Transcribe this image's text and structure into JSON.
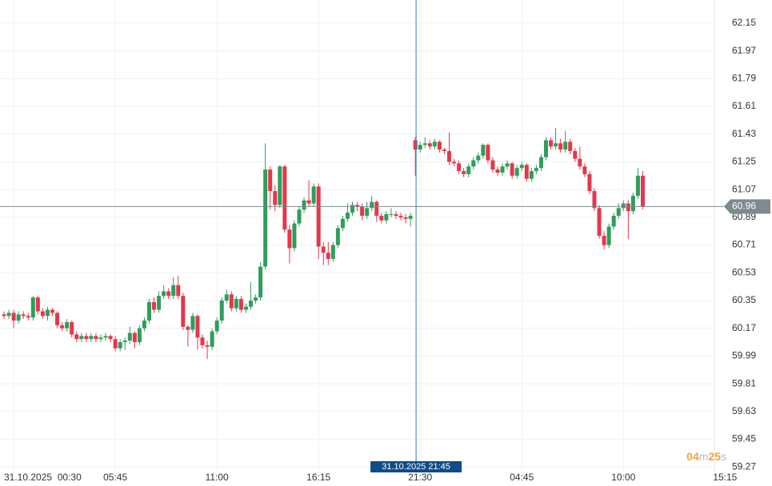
{
  "chart_data": {
    "type": "candlestick",
    "up_color": "#2e9e5b",
    "down_color": "#e5374c",
    "grid": true,
    "open": [
      60.26,
      60.25,
      60.27,
      60.22,
      60.26,
      60.25,
      60.24,
      60.37,
      60.28,
      60.25,
      60.29,
      60.27,
      60.19,
      60.17,
      60.21,
      60.13,
      60.1,
      60.12,
      60.1,
      60.12,
      60.1,
      60.11,
      60.12,
      60.1,
      60.04,
      60.08,
      60.09,
      60.14,
      60.08,
      60.17,
      60.22,
      60.34,
      60.29,
      60.38,
      60.41,
      60.38,
      60.45,
      60.38,
      60.18,
      60.16,
      60.25,
      60.11,
      60.06,
      60.05,
      60.15,
      60.22,
      60.35,
      60.39,
      60.3,
      60.36,
      60.29,
      60.31,
      60.35,
      60.37,
      60.57,
      61.2,
      61.06,
      60.97,
      61.22,
      60.81,
      60.69,
      60.85,
      60.94,
      61.0,
      60.98,
      61.09,
      60.7,
      60.66,
      60.62,
      60.71,
      60.82,
      60.88,
      60.92,
      60.97,
      60.96,
      60.9,
      60.95,
      60.99,
      60.9,
      60.87,
      60.91,
      60.91,
      60.9,
      60.89,
      60.88,
      61.39,
      61.33,
      61.36,
      61.37,
      61.35,
      61.38,
      61.33,
      61.32,
      61.25,
      61.24,
      61.19,
      61.17,
      61.22,
      61.26,
      61.29,
      61.36,
      61.26,
      61.2,
      61.18,
      61.22,
      61.24,
      61.16,
      61.21,
      61.23,
      61.14,
      61.19,
      61.21,
      61.28,
      61.39,
      61.35,
      61.37,
      61.33,
      61.38,
      61.32,
      61.27,
      61.22,
      61.17,
      61.06,
      60.95,
      60.77,
      60.71,
      60.83,
      60.9,
      60.95,
      60.98,
      60.93,
      61.03,
      61.16
    ],
    "high": [
      60.28,
      60.29,
      60.29,
      60.28,
      60.28,
      60.27,
      60.38,
      60.38,
      60.3,
      60.31,
      60.3,
      60.28,
      60.21,
      60.23,
      60.22,
      60.15,
      60.14,
      60.14,
      60.14,
      60.14,
      60.13,
      60.14,
      60.13,
      60.12,
      60.1,
      60.11,
      60.18,
      60.15,
      60.19,
      60.24,
      60.36,
      60.37,
      60.41,
      60.45,
      60.43,
      60.5,
      60.51,
      60.4,
      60.19,
      60.27,
      60.26,
      60.13,
      60.09,
      60.17,
      60.24,
      60.37,
      60.42,
      60.41,
      60.38,
      60.38,
      60.33,
      60.47,
      60.39,
      60.6,
      61.37,
      61.22,
      61.1,
      61.23,
      61.23,
      60.84,
      60.87,
      60.96,
      61.02,
      61.13,
      61.11,
      61.11,
      60.73,
      60.73,
      60.73,
      60.84,
      60.9,
      60.98,
      60.99,
      60.99,
      60.98,
      60.99,
      61.03,
      61.0,
      60.92,
      60.93,
      60.95,
      60.93,
      60.92,
      60.91,
      60.92,
      61.41,
      61.38,
      61.41,
      61.39,
      61.4,
      61.39,
      61.34,
      61.44,
      61.27,
      61.26,
      61.21,
      61.24,
      61.28,
      61.31,
      61.37,
      61.37,
      61.28,
      61.22,
      61.24,
      61.26,
      61.25,
      61.23,
      61.25,
      61.24,
      61.21,
      61.23,
      61.3,
      61.41,
      61.41,
      61.47,
      61.4,
      61.45,
      61.4,
      61.34,
      61.35,
      61.24,
      61.19,
      61.08,
      60.97,
      60.8,
      60.85,
      60.92,
      60.98,
      61.0,
      61.0,
      61.05,
      61.21,
      61.19
    ],
    "low": [
      60.23,
      60.23,
      60.17,
      60.2,
      60.23,
      60.22,
      60.22,
      60.26,
      60.23,
      60.22,
      60.25,
      60.17,
      60.15,
      60.15,
      60.11,
      60.08,
      60.08,
      60.08,
      60.08,
      60.08,
      60.08,
      60.09,
      60.08,
      60.02,
      60.02,
      60.03,
      60.07,
      60.04,
      60.06,
      60.15,
      60.2,
      60.27,
      60.27,
      60.36,
      60.36,
      60.36,
      60.36,
      60.16,
      60.05,
      60.14,
      60.03,
      60.04,
      59.97,
      60.03,
      60.13,
      60.2,
      60.33,
      60.28,
      60.28,
      60.27,
      60.27,
      60.29,
      60.33,
      60.35,
      60.55,
      60.94,
      60.93,
      60.95,
      60.79,
      60.59,
      60.67,
      60.83,
      60.92,
      60.96,
      60.96,
      60.62,
      60.58,
      60.58,
      60.6,
      60.69,
      60.8,
      60.86,
      60.9,
      60.93,
      60.87,
      60.88,
      60.93,
      60.86,
      60.85,
      60.85,
      60.89,
      60.88,
      60.87,
      60.85,
      60.83,
      61.16,
      61.31,
      61.34,
      61.33,
      61.33,
      61.31,
      61.3,
      61.23,
      61.22,
      61.17,
      61.15,
      61.15,
      61.2,
      61.24,
      61.27,
      61.24,
      61.18,
      61.16,
      61.16,
      61.2,
      61.14,
      61.14,
      61.19,
      61.12,
      61.12,
      61.17,
      61.19,
      61.26,
      61.33,
      61.33,
      61.31,
      61.31,
      61.3,
      61.25,
      61.2,
      61.15,
      61.04,
      60.93,
      60.75,
      60.68,
      60.69,
      60.81,
      60.88,
      60.93,
      60.75,
      60.91,
      61.01,
      60.94
    ],
    "close": [
      60.25,
      60.27,
      60.22,
      60.26,
      60.25,
      60.24,
      60.37,
      60.28,
      60.25,
      60.29,
      60.27,
      60.19,
      60.17,
      60.21,
      60.13,
      60.1,
      60.12,
      60.1,
      60.12,
      60.1,
      60.11,
      60.12,
      60.1,
      60.04,
      60.08,
      60.09,
      60.14,
      60.08,
      60.17,
      60.22,
      60.34,
      60.29,
      60.38,
      60.41,
      60.38,
      60.45,
      60.38,
      60.18,
      60.16,
      60.25,
      60.11,
      60.06,
      60.05,
      60.15,
      60.22,
      60.35,
      60.39,
      60.3,
      60.36,
      60.29,
      60.31,
      60.35,
      60.37,
      60.57,
      61.2,
      61.06,
      60.97,
      61.22,
      60.81,
      60.69,
      60.85,
      60.94,
      61.0,
      60.98,
      61.09,
      60.7,
      60.66,
      60.62,
      60.71,
      60.82,
      60.88,
      60.92,
      60.97,
      60.96,
      60.9,
      60.95,
      60.99,
      60.9,
      60.87,
      60.91,
      60.91,
      60.9,
      60.89,
      60.88,
      60.9,
      61.33,
      61.36,
      61.37,
      61.35,
      61.38,
      61.33,
      61.32,
      61.25,
      61.24,
      61.19,
      61.17,
      61.22,
      61.26,
      61.29,
      61.36,
      61.26,
      61.2,
      61.18,
      61.22,
      61.24,
      61.16,
      61.21,
      61.23,
      61.14,
      61.19,
      61.21,
      61.28,
      61.39,
      61.35,
      61.37,
      61.33,
      61.38,
      61.32,
      61.27,
      61.22,
      61.17,
      61.06,
      60.95,
      60.77,
      60.71,
      60.83,
      60.9,
      60.95,
      60.98,
      60.93,
      61.03,
      61.16,
      60.96
    ],
    "xlim": [
      -0.83,
      146.8
    ],
    "xticks": [
      {
        "value": 2,
        "label": "31.10.2025  00:30"
      },
      {
        "value": 23,
        "label": "05:45"
      },
      {
        "value": 44,
        "label": "11:00"
      },
      {
        "value": 65,
        "label": "16:15"
      },
      {
        "value": 86,
        "label": "21:30"
      },
      {
        "value": 107,
        "label": "04:45"
      },
      {
        "value": 128,
        "label": "10:00"
      },
      {
        "value": 149,
        "label": "15:15"
      }
    ],
    "ylim": [
      59.24,
      62.3
    ],
    "yticks": [
      62.15,
      61.97,
      61.79,
      61.61,
      61.43,
      61.25,
      61.07,
      60.89,
      60.71,
      60.53,
      60.35,
      60.17,
      59.99,
      59.81,
      59.63,
      59.45,
      59.27
    ],
    "last_price": 60.96,
    "crosshair": {
      "x": 85.15,
      "label": "31.10.2025 21:45"
    },
    "timer": [
      "04",
      "m",
      "25",
      "s"
    ]
  }
}
